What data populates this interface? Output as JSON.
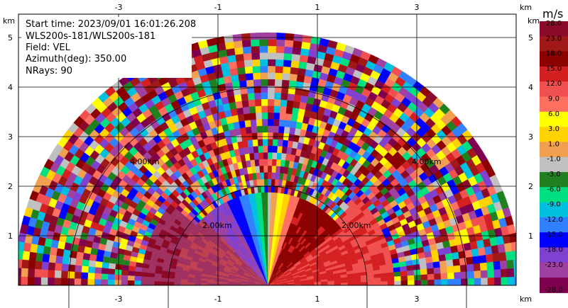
{
  "info": {
    "start_time": "Start time: 2023/09/01 16:01:26.208",
    "station": "WLS200s-181/WLS200s-181",
    "field": "Field: VEL",
    "azimuth": "Azimuth(deg): 350.00",
    "nrays": "NRays: 90"
  },
  "axes": {
    "x_unit": "km",
    "y_unit": "km",
    "x_ticks": [
      "-3",
      "-1",
      "1",
      "3"
    ],
    "y_ticks": [
      "1",
      "2",
      "3",
      "4",
      "5"
    ]
  },
  "rings": [
    "2.00km",
    "2.00km",
    "4.00km",
    "4.00km"
  ],
  "colorbar": {
    "unit": "m/s",
    "labels": [
      "28.0",
      "23.0",
      "18.0",
      "15.0",
      "12.0",
      "9.0",
      "6.0",
      "3.0",
      "1.0",
      "-1.0",
      "-3.0",
      "-6.0",
      "-9.0",
      "-12.0",
      "-15.0",
      "-18.0",
      "-23.0",
      "-28.0"
    ],
    "colors": [
      "#8b0a2a",
      "#a01818",
      "#8b0000",
      "#d42020",
      "#f05050",
      "#ff7060",
      "#ffff00",
      "#ffd200",
      "#f0a050",
      "#c0c0c0",
      "#208020",
      "#00e080",
      "#00c0e0",
      "#3080ff",
      "#0000ff",
      "#8040d0",
      "#a040a0",
      "#800050"
    ]
  },
  "chart_data": {
    "type": "heatmap",
    "title": "",
    "xlabel": "km",
    "ylabel": "km",
    "xlim": [
      -5.5,
      5.5
    ],
    "ylim": [
      0,
      5.5
    ],
    "x_ticks": [
      -3,
      -1,
      1,
      3
    ],
    "y_ticks": [
      1,
      2,
      3,
      4,
      5
    ],
    "range_rings_km": [
      2,
      4
    ],
    "max_range_km": 5.1,
    "colorbar_unit": "m/s",
    "colorbar_levels": [
      -28,
      -23,
      -18,
      -15,
      -12,
      -9,
      -6,
      -3,
      -1,
      1,
      3,
      6,
      9,
      12,
      15,
      18,
      23,
      28
    ]
  }
}
